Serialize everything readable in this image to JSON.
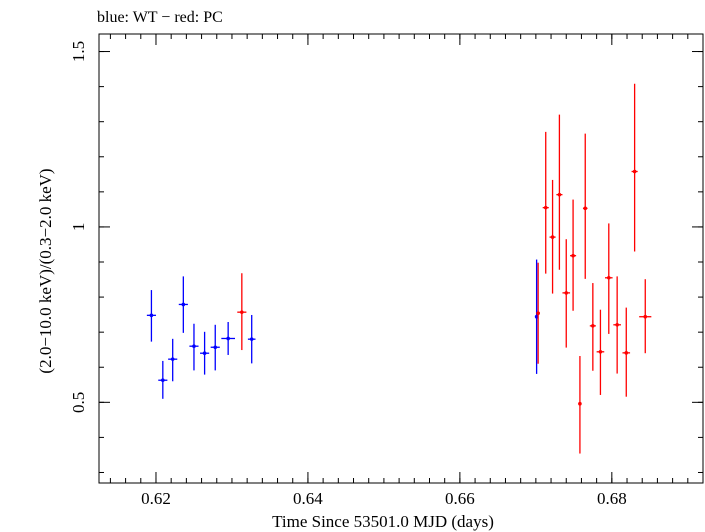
{
  "chart_data": {
    "type": "scatter",
    "title": "blue: WT − red: PC",
    "xlabel": "Time Since 53501.0 MJD (days)",
    "ylabel": "(2.0−10.0 keV)/(0.3−2.0 keV)",
    "xlim": [
      0.6125,
      0.692
    ],
    "ylim": [
      0.27,
      1.55
    ],
    "x_ticks": [
      0.62,
      0.64,
      0.66,
      0.68
    ],
    "x_tick_labels": [
      "0.62",
      "0.64",
      "0.66",
      "0.68"
    ],
    "y_ticks": [
      0.5,
      1.0,
      1.5
    ],
    "y_tick_labels": [
      "0.5",
      "1",
      "1.5"
    ],
    "x_minor_step": 0.002,
    "y_minor_step": 0.1,
    "grid": false,
    "series": [
      {
        "name": "WT",
        "color": "#0000ff",
        "points": [
          {
            "x": 0.6194,
            "xerr": 0.0006,
            "y": 0.748,
            "yerr_lo": 0.075,
            "yerr_hi": 0.072
          },
          {
            "x": 0.6209,
            "xerr": 0.0006,
            "y": 0.563,
            "yerr_lo": 0.053,
            "yerr_hi": 0.055
          },
          {
            "x": 0.6222,
            "xerr": 0.0006,
            "y": 0.623,
            "yerr_lo": 0.063,
            "yerr_hi": 0.058
          },
          {
            "x": 0.6236,
            "xerr": 0.0006,
            "y": 0.779,
            "yerr_lo": 0.081,
            "yerr_hi": 0.08
          },
          {
            "x": 0.625,
            "xerr": 0.0006,
            "y": 0.66,
            "yerr_lo": 0.069,
            "yerr_hi": 0.064
          },
          {
            "x": 0.6264,
            "xerr": 0.0006,
            "y": 0.64,
            "yerr_lo": 0.061,
            "yerr_hi": 0.061
          },
          {
            "x": 0.6278,
            "xerr": 0.0006,
            "y": 0.657,
            "yerr_lo": 0.066,
            "yerr_hi": 0.064
          },
          {
            "x": 0.6295,
            "xerr": 0.0009,
            "y": 0.682,
            "yerr_lo": 0.047,
            "yerr_hi": 0.047
          },
          {
            "x": 0.6326,
            "xerr": 0.0005,
            "y": 0.68,
            "yerr_lo": 0.069,
            "yerr_hi": 0.069
          },
          {
            "x": 0.6701,
            "xerr": 0.0001,
            "y": 0.744,
            "yerr_lo": 0.163,
            "yerr_hi": 0.163
          }
        ]
      },
      {
        "name": "PC",
        "color": "#ff0000",
        "points": [
          {
            "x": 0.6313,
            "xerr": 0.0006,
            "y": 0.757,
            "yerr_lo": 0.108,
            "yerr_hi": 0.111
          },
          {
            "x": 0.6703,
            "xerr": 0.0002,
            "y": 0.754,
            "yerr_lo": 0.144,
            "yerr_hi": 0.144
          },
          {
            "x": 0.6713,
            "xerr": 0.0004,
            "y": 1.055,
            "yerr_lo": 0.188,
            "yerr_hi": 0.216
          },
          {
            "x": 0.6722,
            "xerr": 0.0004,
            "y": 0.971,
            "yerr_lo": 0.161,
            "yerr_hi": 0.163
          },
          {
            "x": 0.6731,
            "xerr": 0.0004,
            "y": 1.092,
            "yerr_lo": 0.214,
            "yerr_hi": 0.228
          },
          {
            "x": 0.674,
            "xerr": 0.0005,
            "y": 0.812,
            "yerr_lo": 0.156,
            "yerr_hi": 0.153
          },
          {
            "x": 0.6749,
            "xerr": 0.0004,
            "y": 0.918,
            "yerr_lo": 0.157,
            "yerr_hi": 0.16
          },
          {
            "x": 0.6758,
            "xerr": 0.0002,
            "y": 0.496,
            "yerr_lo": 0.142,
            "yerr_hi": 0.136
          },
          {
            "x": 0.6765,
            "xerr": 0.0003,
            "y": 1.053,
            "yerr_lo": 0.201,
            "yerr_hi": 0.213
          },
          {
            "x": 0.6775,
            "xerr": 0.0004,
            "y": 0.718,
            "yerr_lo": 0.128,
            "yerr_hi": 0.122
          },
          {
            "x": 0.6785,
            "xerr": 0.0005,
            "y": 0.644,
            "yerr_lo": 0.123,
            "yerr_hi": 0.12
          },
          {
            "x": 0.6796,
            "xerr": 0.0005,
            "y": 0.855,
            "yerr_lo": 0.16,
            "yerr_hi": 0.155
          },
          {
            "x": 0.6807,
            "xerr": 0.0005,
            "y": 0.721,
            "yerr_lo": 0.139,
            "yerr_hi": 0.138
          },
          {
            "x": 0.6819,
            "xerr": 0.0005,
            "y": 0.641,
            "yerr_lo": 0.125,
            "yerr_hi": 0.129
          },
          {
            "x": 0.683,
            "xerr": 0.0004,
            "y": 1.158,
            "yerr_lo": 0.228,
            "yerr_hi": 0.25
          },
          {
            "x": 0.6844,
            "xerr": 0.0008,
            "y": 0.744,
            "yerr_lo": 0.104,
            "yerr_hi": 0.107
          }
        ]
      }
    ]
  }
}
